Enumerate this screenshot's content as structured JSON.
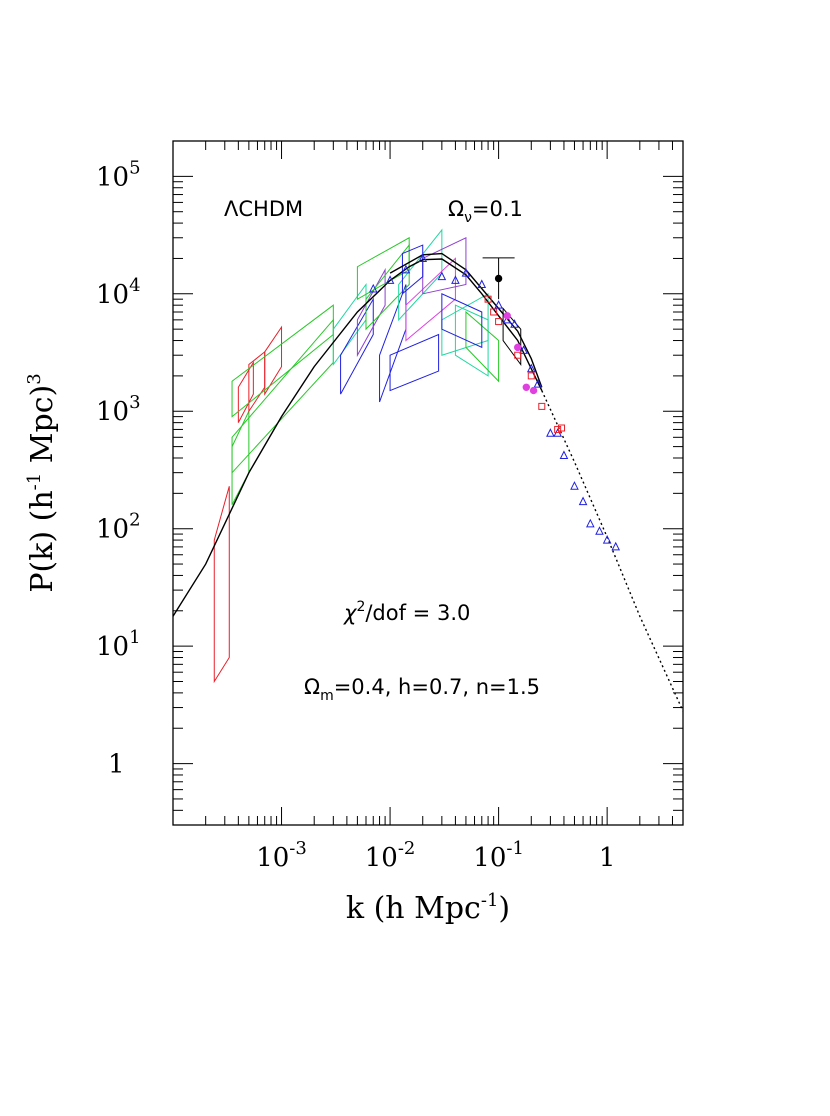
{
  "chart_data": {
    "type": "scatter",
    "scale": "log-log",
    "xlabel": "k (h Mpc",
    "xlabel_sup": "-1",
    "xlabel_end": ")",
    "ylabel": "P(k) (h",
    "ylabel_sup": "-1",
    "ylabel_mid": " Mpc)",
    "ylabel_sup2": "3",
    "xlim": [
      0.0001,
      5.0
    ],
    "ylim": [
      0.3,
      200000
    ],
    "x_ticks": [
      {
        "base": "10",
        "exp": "-3",
        "value": 0.001
      },
      {
        "base": "10",
        "exp": "-2",
        "value": 0.01
      },
      {
        "base": "10",
        "exp": "-1",
        "value": 0.1
      },
      {
        "base": "1",
        "exp": "",
        "value": 1
      }
    ],
    "y_ticks": [
      {
        "base": "10",
        "exp": "5",
        "value": 100000
      },
      {
        "base": "10",
        "exp": "4",
        "value": 10000
      },
      {
        "base": "10",
        "exp": "3",
        "value": 1000
      },
      {
        "base": "10",
        "exp": "2",
        "value": 100
      },
      {
        "base": "10",
        "exp": "1",
        "value": 10
      },
      {
        "base": "1",
        "exp": "",
        "value": 1
      }
    ],
    "annotations": {
      "model": "ΛCHDM",
      "omega_nu_symbol": "Ω",
      "omega_nu_sub": "ν",
      "omega_nu_value": "=0.1",
      "chi_symbol": "χ",
      "chi_sup": "2",
      "chi_text": "/dof = 3.0",
      "params_symbol": "Ω",
      "params_sub": "m",
      "params_text": "=0.4, h=0.7, n=1.5"
    },
    "colors": {
      "red": "#e8202a",
      "green": "#28c828",
      "cyan_green": "#20d8a0",
      "blue": "#2020e0",
      "magenta": "#e040e0",
      "purple": "#9040d0",
      "orange": "#f09030",
      "black": "#000000"
    },
    "series": [
      {
        "name": "model curve (solid)",
        "style": "solid",
        "color": "#000000",
        "x": [
          0.0001,
          0.0002,
          0.0005,
          0.001,
          0.002,
          0.005,
          0.01,
          0.015,
          0.02,
          0.03,
          0.05,
          0.07,
          0.1,
          0.15,
          0.2,
          0.25
        ],
        "y": [
          18,
          50,
          300,
          900,
          2400,
          7000,
          13000,
          17000,
          19500,
          19800,
          14500,
          10000,
          6500,
          4000,
          2300,
          1500
        ]
      },
      {
        "name": "model curve (dotted extrapolation)",
        "style": "dotted",
        "color": "#000000",
        "x": [
          0.25,
          0.5,
          1.0,
          2.0,
          5.0
        ],
        "y": [
          1500,
          370,
          85,
          18,
          2.8
        ]
      },
      {
        "name": "upper model envelope",
        "style": "solid",
        "color": "#000000",
        "x": [
          0.01,
          0.02,
          0.03,
          0.05,
          0.1,
          0.15,
          0.2,
          0.25
        ],
        "y": [
          15000,
          21500,
          22000,
          16000,
          7500,
          4800,
          2800,
          1600
        ]
      },
      {
        "name": "small-scale points (triangles)",
        "style": "marker",
        "marker": "triangle",
        "color": "#2020e0",
        "x": [
          0.3,
          0.35,
          0.4,
          0.5,
          0.6,
          0.7,
          0.85,
          1.0,
          1.2
        ],
        "y": [
          650,
          650,
          420,
          230,
          170,
          110,
          95,
          80,
          70
        ]
      },
      {
        "name": "intermediate points (triangles)",
        "style": "marker",
        "marker": "triangle",
        "color": "#2020e0",
        "x": [
          0.007,
          0.01,
          0.014,
          0.02,
          0.03,
          0.04,
          0.05,
          0.07,
          0.1,
          0.12,
          0.14,
          0.17,
          0.2,
          0.23
        ],
        "y": [
          11000,
          13000,
          16000,
          20000,
          14000,
          13000,
          15000,
          12000,
          8000,
          6000,
          5500,
          3300,
          2300,
          1700
        ]
      },
      {
        "name": "squares",
        "style": "marker",
        "marker": "square",
        "color": "#e8202a",
        "x": [
          0.08,
          0.09,
          0.1,
          0.15,
          0.2,
          0.25,
          0.35,
          0.38
        ],
        "y": [
          9000,
          7000,
          5800,
          3000,
          2000,
          1100,
          700,
          720
        ]
      },
      {
        "name": "filled points",
        "style": "marker",
        "marker": "circle",
        "color": "#e040e0",
        "x": [
          0.12,
          0.15,
          0.18,
          0.21
        ],
        "y": [
          6500,
          3500,
          1600,
          1500
        ]
      },
      {
        "name": "black filled point",
        "style": "marker",
        "marker": "circle",
        "color": "#000000",
        "x": [
          0.1
        ],
        "y": [
          13500
        ]
      }
    ]
  }
}
